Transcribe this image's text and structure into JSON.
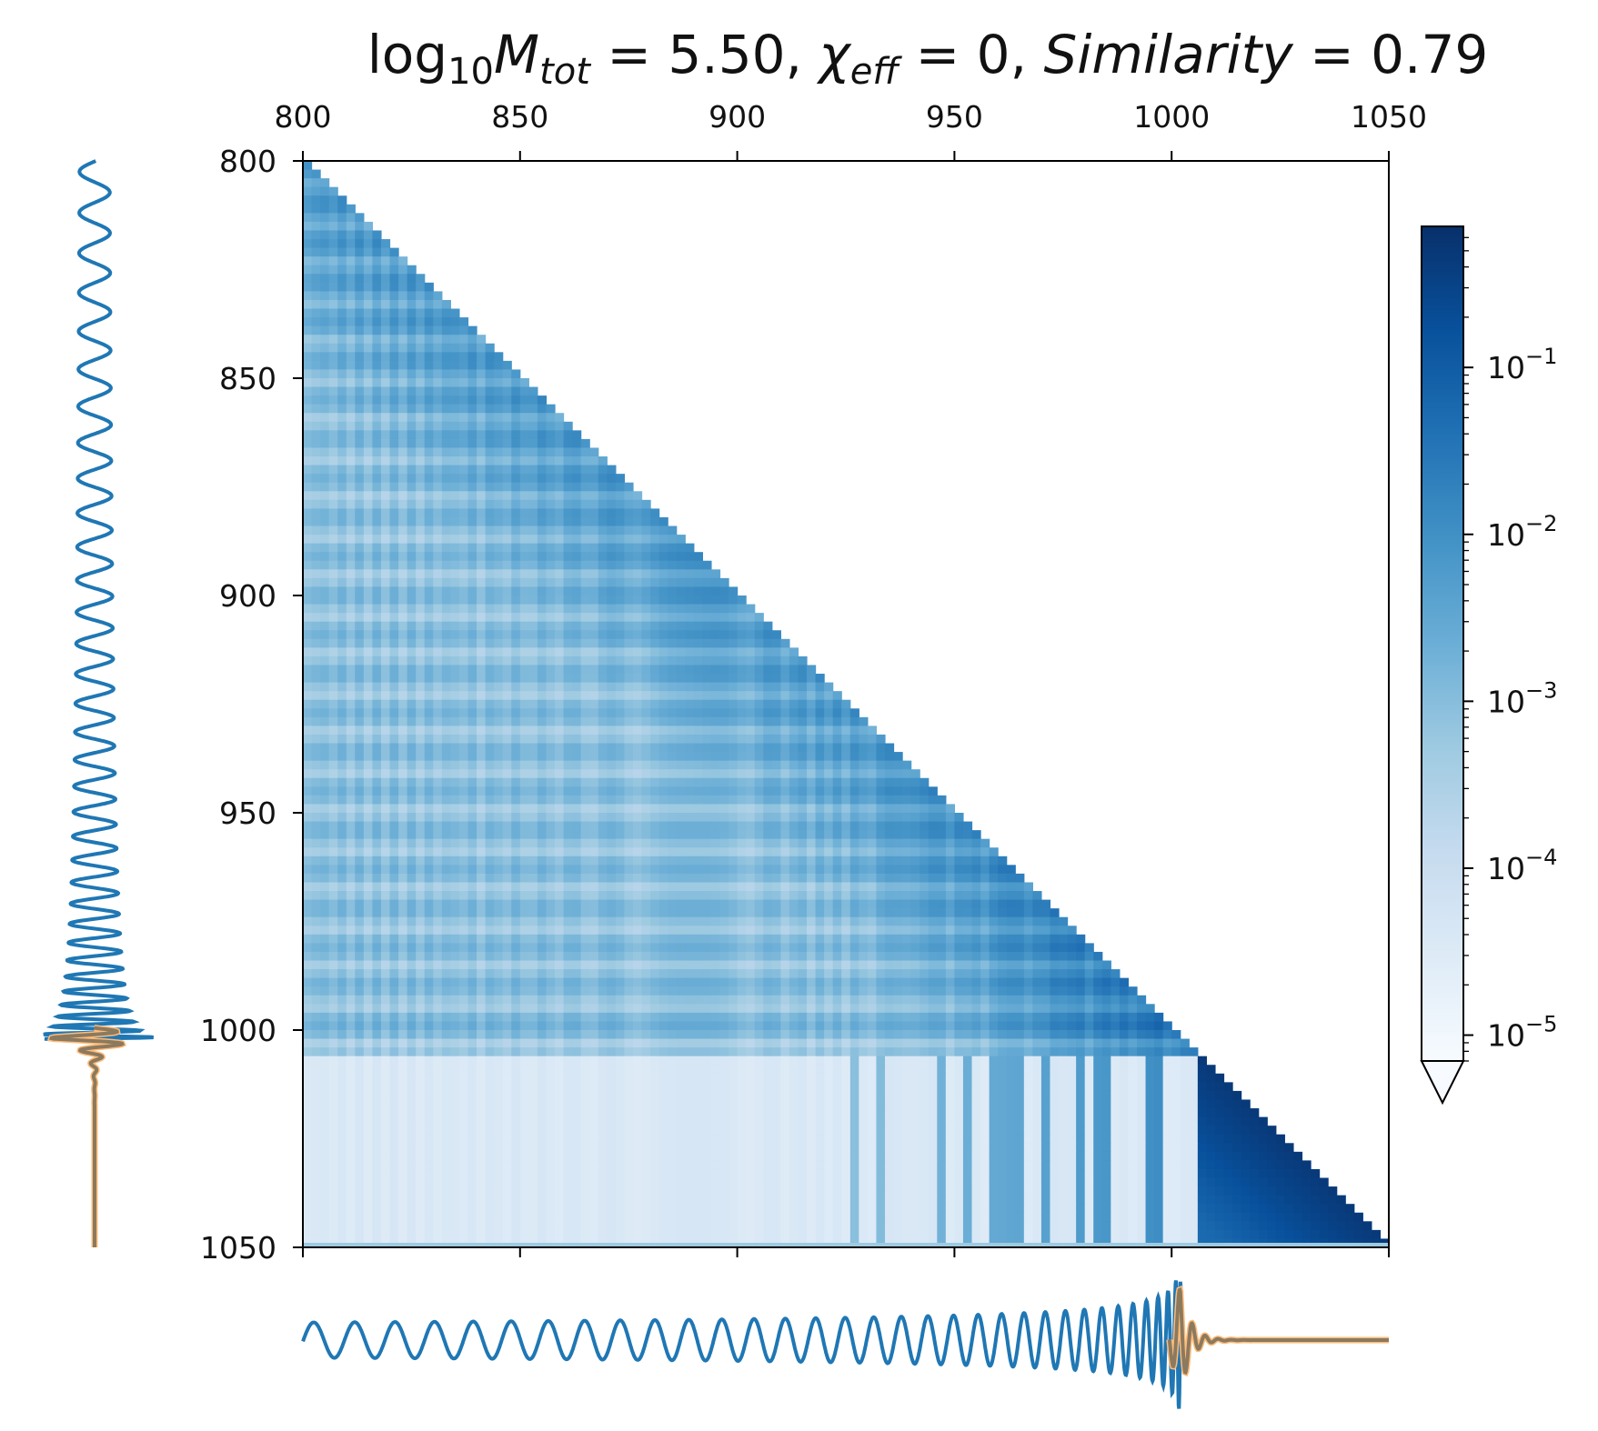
{
  "chart_data": {
    "type": "heatmap",
    "title": {
      "parts": [
        {
          "t": "log",
          "style": "normal"
        },
        {
          "t": "10",
          "style": "sub"
        },
        {
          "t": "M",
          "style": "italic"
        },
        {
          "t": "tot",
          "style": "italic-sub"
        },
        {
          "t": " = 5.50, ",
          "style": "normal"
        },
        {
          "t": "χ",
          "style": "italic"
        },
        {
          "t": "eff",
          "style": "italic-sub"
        },
        {
          "t": " = 0, ",
          "style": "normal"
        },
        {
          "t": "Similarity",
          "style": "italic"
        },
        {
          "t": " = 0.79",
          "style": "normal"
        }
      ]
    },
    "x_axis": {
      "range": [
        800,
        1050
      ],
      "position": "top",
      "ticks": [
        800,
        850,
        900,
        950,
        1000,
        1050
      ],
      "tick_labels": [
        "800",
        "850",
        "900",
        "950",
        "1000",
        "1050"
      ]
    },
    "y_axis": {
      "range": [
        800,
        1050
      ],
      "inverted": true,
      "ticks": [
        800,
        850,
        900,
        950,
        1000,
        1050
      ],
      "tick_labels": [
        "800",
        "850",
        "900",
        "950",
        "1000",
        "1050"
      ]
    },
    "matrix": {
      "shape": "lower-triangular",
      "colormap": "Blues",
      "color_scale": "log",
      "vmin": 7e-06,
      "vmax": 0.7,
      "transition_row": 1007,
      "merger_column": 1006
    },
    "colorbar": {
      "scale": "log",
      "range": [
        7e-06,
        0.7
      ],
      "extend": "min",
      "major_ticks": [
        0.1,
        0.01,
        0.001,
        0.0001,
        1e-05
      ],
      "tick_labels": [
        {
          "base": "10",
          "exp": "−1"
        },
        {
          "base": "10",
          "exp": "−2"
        },
        {
          "base": "10",
          "exp": "−3"
        },
        {
          "base": "10",
          "exp": "−4"
        },
        {
          "base": "10",
          "exp": "−5"
        }
      ]
    },
    "waveforms": {
      "axis_range": [
        800,
        1050
      ],
      "merger_time": 1002,
      "series": [
        {
          "name": "",
          "color": "#1f77b4",
          "role": "full-signal"
        },
        {
          "name": "",
          "color": "#ffbb78",
          "role": "ringdown-reference"
        },
        {
          "name": "",
          "color": "#8c7a5f",
          "role": "overlap"
        }
      ]
    }
  }
}
